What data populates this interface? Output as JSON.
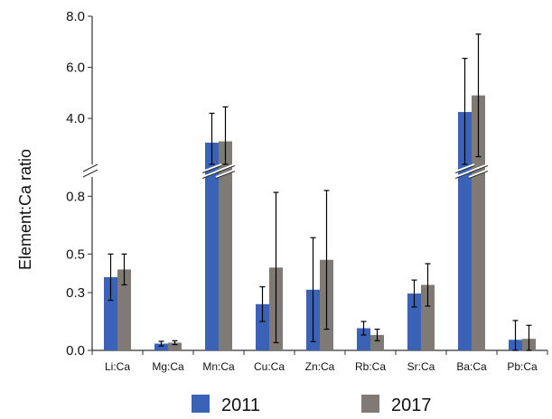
{
  "chart_data": {
    "type": "bar",
    "ylabel": "Element:Ca ratio",
    "y_axis_break": true,
    "lower_ylim": [
      0.0,
      0.9
    ],
    "upper_ylim": [
      2.2,
      8.0
    ],
    "lower_ticks": [
      {
        "value": 0.0,
        "label": "0.0"
      },
      {
        "value": 0.3,
        "label": "0.3"
      },
      {
        "value": 0.5,
        "label": "0.5"
      },
      {
        "value": 0.8,
        "label": "0.8"
      }
    ],
    "upper_ticks": [
      {
        "value": 4.0,
        "label": "4.0"
      },
      {
        "value": 6.0,
        "label": "6.0"
      },
      {
        "value": 8.0,
        "label": "8.0"
      }
    ],
    "categories": [
      "Li:Ca",
      "Mg:Ca",
      "Mn:Ca",
      "Cu:Ca",
      "Zn:Ca",
      "Rb:Ca",
      "Sr:Ca",
      "Ba:Ca",
      "Pb:Ca"
    ],
    "series": [
      {
        "name": "2011",
        "color": "#3a63b8",
        "values": [
          0.38,
          0.035,
          3.05,
          0.24,
          0.315,
          0.115,
          0.295,
          4.25,
          0.055
        ],
        "error": [
          0.12,
          0.012,
          1.15,
          0.09,
          0.27,
          0.035,
          0.07,
          2.1,
          0.1
        ]
      },
      {
        "name": "2017",
        "color": "#7f7a76",
        "values": [
          0.42,
          0.04,
          3.1,
          0.43,
          0.47,
          0.08,
          0.34,
          4.9,
          0.06
        ],
        "error": [
          0.08,
          0.01,
          1.35,
          0.39,
          0.36,
          0.03,
          0.11,
          2.4,
          0.07
        ]
      }
    ],
    "grid": false,
    "legend_position": "bottom"
  }
}
